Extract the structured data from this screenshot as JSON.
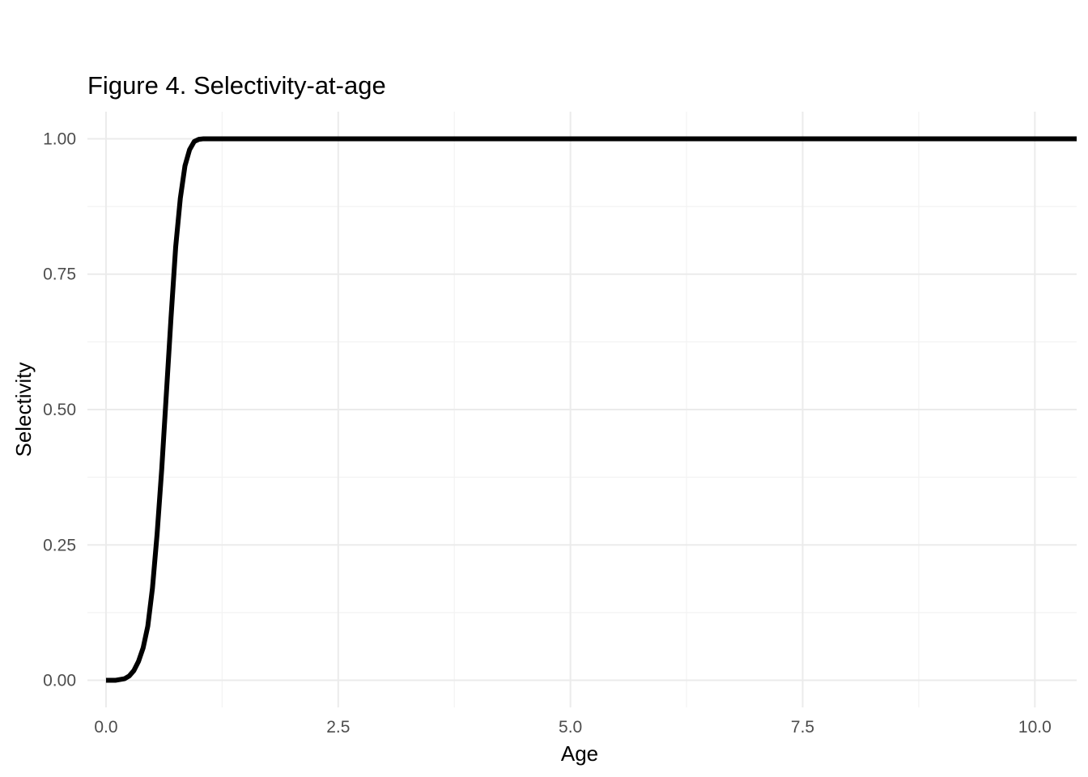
{
  "chart_data": {
    "type": "line",
    "title": "Figure 4. Selectivity-at-age",
    "xlabel": "Age",
    "ylabel": "Selectivity",
    "xlim": [
      -0.2,
      10.45
    ],
    "ylim": [
      -0.05,
      1.05
    ],
    "x_ticks": [
      0.0,
      2.5,
      5.0,
      7.5,
      10.0
    ],
    "x_tick_labels": [
      "0.0",
      "2.5",
      "5.0",
      "7.5",
      "10.0"
    ],
    "y_ticks": [
      0.0,
      0.25,
      0.5,
      0.75,
      1.0
    ],
    "y_tick_labels": [
      "0.00",
      "0.25",
      "0.50",
      "0.75",
      "1.00"
    ],
    "x_minor_ticks": [
      1.25,
      3.75,
      6.25,
      8.75
    ],
    "y_minor_ticks": [
      0.125,
      0.375,
      0.625,
      0.875
    ],
    "grid": true,
    "line_color": "#000000",
    "series": [
      {
        "name": "Selectivity",
        "x": [
          0.0,
          0.1,
          0.2,
          0.25,
          0.3,
          0.35,
          0.4,
          0.45,
          0.5,
          0.55,
          0.6,
          0.65,
          0.7,
          0.75,
          0.8,
          0.85,
          0.9,
          0.95,
          1.0,
          1.05,
          1.1,
          1.5,
          2.0,
          3.0,
          4.0,
          5.0,
          6.0,
          7.0,
          8.0,
          9.0,
          10.0,
          10.45
        ],
        "y": [
          0.0,
          0.0,
          0.003,
          0.008,
          0.018,
          0.035,
          0.06,
          0.1,
          0.17,
          0.27,
          0.39,
          0.53,
          0.67,
          0.8,
          0.89,
          0.95,
          0.98,
          0.995,
          0.999,
          1.0,
          1.0,
          1.0,
          1.0,
          1.0,
          1.0,
          1.0,
          1.0,
          1.0,
          1.0,
          1.0,
          1.0,
          1.0
        ]
      }
    ]
  }
}
